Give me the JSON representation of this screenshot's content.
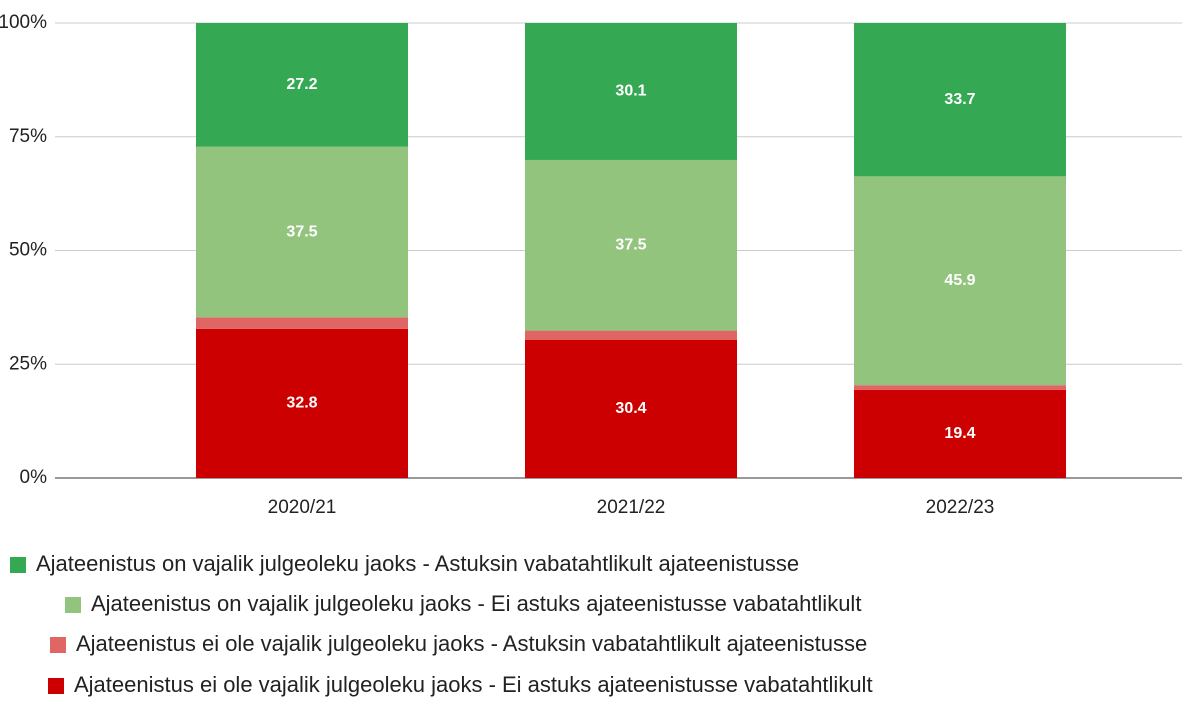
{
  "chart_data": {
    "type": "stacked_bar_100",
    "categories": [
      "2020/21",
      "2021/22",
      "2022/23"
    ],
    "series": [
      {
        "name": "Ajateenistus on vajalik julgeoleku jaoks - Astuksin vabatahtlikult ajateenistusse",
        "color": "#34a853",
        "values": [
          27.2,
          30.1,
          33.7
        ],
        "data_labels": true
      },
      {
        "name": "Ajateenistus on vajalik julgeoleku jaoks - Ei astuks ajateenistusse vabatahtlikult",
        "color": "#93c47d",
        "values": [
          37.5,
          37.5,
          45.9
        ],
        "data_labels": true
      },
      {
        "name": "Ajateenistus ei ole vajalik julgeoleku jaoks - Astuksin vabatahtlikult ajateenistusse",
        "color": "#e06666",
        "values": [
          2.5,
          2.0,
          1.0
        ],
        "data_labels": false
      },
      {
        "name": "Ajateenistus ei ole vajalik julgeoleku jaoks - Ei astuks ajateenistusse vabatahtlikult",
        "color": "#cc0000",
        "values": [
          32.8,
          30.4,
          19.4
        ],
        "data_labels": true
      }
    ],
    "ylim": [
      0,
      100
    ],
    "yticks": [
      {
        "value": 0,
        "label": "0%"
      },
      {
        "value": 25,
        "label": "25%"
      },
      {
        "value": 50,
        "label": "50%"
      },
      {
        "value": 75,
        "label": "75%"
      },
      {
        "value": 100,
        "label": "100%"
      }
    ],
    "grid": true,
    "legend": "bottom"
  }
}
